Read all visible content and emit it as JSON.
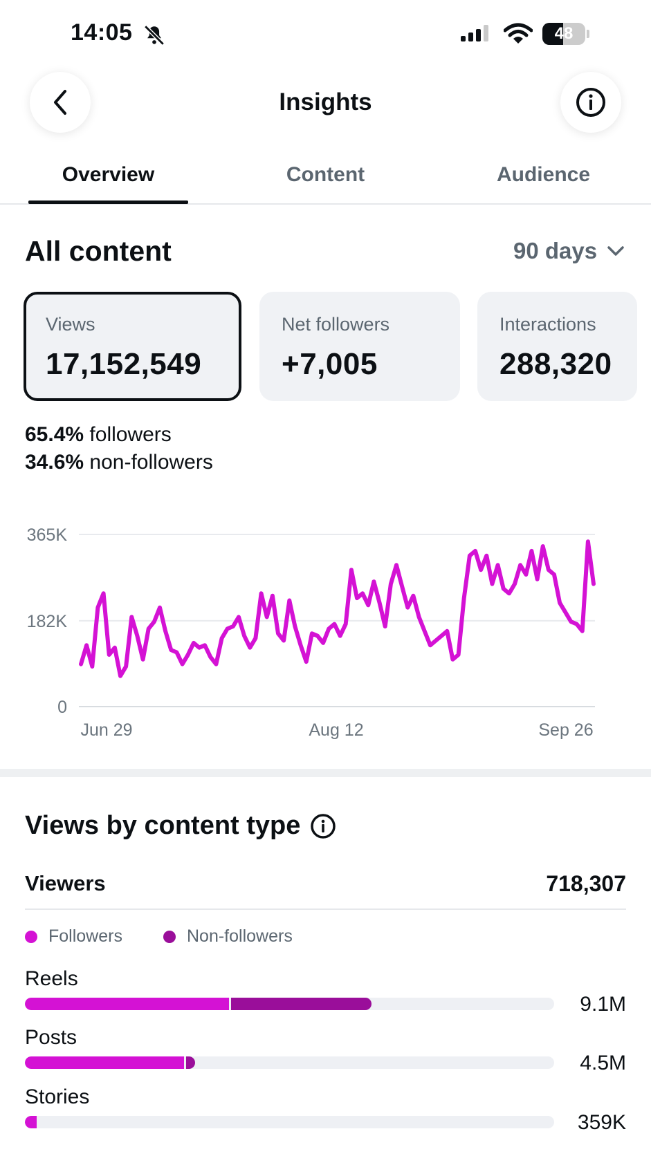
{
  "status": {
    "time": "14:05",
    "battery": "48",
    "battery_level": 0.48
  },
  "header": {
    "title": "Insights"
  },
  "tabs": [
    {
      "label": "Overview",
      "active": true
    },
    {
      "label": "Content",
      "active": false
    },
    {
      "label": "Audience",
      "active": false
    }
  ],
  "overview": {
    "title": "All content",
    "range": "90 days",
    "metrics": [
      {
        "label": "Views",
        "value": "17,152,549",
        "selected": true
      },
      {
        "label": "Net followers",
        "value": "+7,005",
        "selected": false
      },
      {
        "label": "Interactions",
        "value": "288,320",
        "selected": false
      }
    ],
    "split": [
      {
        "percent": "65.4%",
        "label": "followers"
      },
      {
        "percent": "34.6%",
        "label": "non-followers"
      }
    ]
  },
  "chart_data": {
    "type": "line",
    "y_ticks": [
      "365K",
      "182K",
      "0"
    ],
    "x_ticks": [
      "Jun 29",
      "Aug 12",
      "Sep 26"
    ],
    "ylim": [
      0,
      365000
    ],
    "grid": true,
    "color": "#d412d4",
    "series": [
      {
        "values": [
          90,
          130,
          85,
          210,
          240,
          110,
          125,
          65,
          85,
          190,
          150,
          100,
          165,
          180,
          210,
          160,
          120,
          115,
          90,
          110,
          135,
          125,
          130,
          105,
          90,
          145,
          165,
          170,
          190,
          150,
          125,
          145,
          240,
          190,
          235,
          155,
          140,
          225,
          170,
          130,
          95,
          155,
          150,
          135,
          165,
          175,
          150,
          175,
          290,
          230,
          240,
          215,
          265,
          220,
          170,
          260,
          300,
          255,
          210,
          235,
          190,
          160,
          130,
          140,
          150,
          160,
          100,
          110,
          230,
          320,
          330,
          290,
          320,
          260,
          300,
          250,
          240,
          260,
          300,
          280,
          330,
          270,
          340,
          290,
          280,
          220,
          200,
          180,
          175,
          160,
          350,
          260
        ]
      }
    ]
  },
  "content_types": {
    "title": "Views by content type",
    "viewers_label": "Viewers",
    "viewers_value": "718,307",
    "legend": [
      {
        "label": "Followers",
        "color": "#d412d4"
      },
      {
        "label": "Non-followers",
        "color": "#9a0e9a"
      }
    ],
    "bars": [
      {
        "label": "Reels",
        "value": "9.1M",
        "followers": 0.385,
        "non_followers": 0.27
      },
      {
        "label": "Posts",
        "value": "4.5M",
        "followers": 0.3,
        "non_followers": 0.022
      },
      {
        "label": "Stories",
        "value": "359K",
        "followers": 0.022,
        "non_followers": 0.004
      }
    ]
  }
}
